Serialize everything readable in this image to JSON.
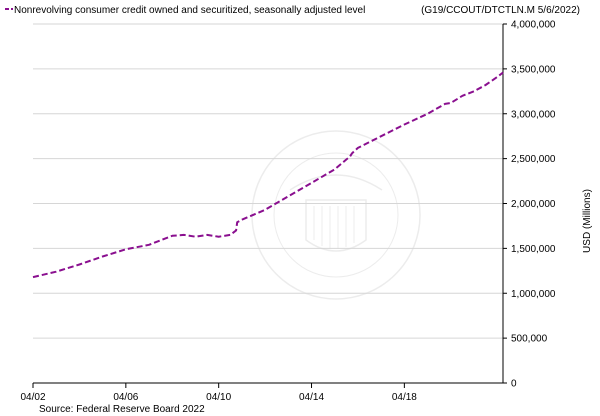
{
  "chart_data": {
    "type": "line",
    "legend": {
      "label": "Nonrevolving consumer credit owned and securitized, seasonally adjusted level",
      "placement": "top-left"
    },
    "series_code": "(G19/CCOUT/DTCTLN.M 5/6/2022)",
    "ylabel": "USD (Millions)",
    "source": "Source: Federal Reserve Board 2022",
    "ylim": [
      0,
      4000000
    ],
    "xlim": [
      2002.0,
      2022.25
    ],
    "grid": "horizontal",
    "y_axis_side": "right",
    "line_color": "#8a0f8f",
    "line_style": "dashed",
    "x_ticks": [
      {
        "value": 2002,
        "label": "04/02"
      },
      {
        "value": 2006,
        "label": "04/06"
      },
      {
        "value": 2010,
        "label": "04/10"
      },
      {
        "value": 2014,
        "label": "04/14"
      },
      {
        "value": 2018,
        "label": "04/18"
      }
    ],
    "y_ticks": [
      {
        "value": 0,
        "label": "0"
      },
      {
        "value": 500000,
        "label": "500,000"
      },
      {
        "value": 1000000,
        "label": "1,000,000"
      },
      {
        "value": 1500000,
        "label": "1,500,000"
      },
      {
        "value": 2000000,
        "label": "2,000,000"
      },
      {
        "value": 2500000,
        "label": "2,500,000"
      },
      {
        "value": 3000000,
        "label": "3,000,000"
      },
      {
        "value": 3500000,
        "label": "3,500,000"
      },
      {
        "value": 4000000,
        "label": "4,000,000"
      }
    ],
    "series": [
      {
        "x": [
          2002.0,
          2003.0,
          2004.0,
          2005.0,
          2006.0,
          2007.0,
          2008.0,
          2008.5,
          2009.0,
          2009.5,
          2010.0,
          2010.5,
          2010.75,
          2010.8,
          2011.0,
          2012.0,
          2013.0,
          2014.0,
          2015.0,
          2015.5,
          2015.65,
          2015.75,
          2016.0,
          2017.0,
          2018.0,
          2019.0,
          2019.75,
          2020.0,
          2020.5,
          2021.0,
          2021.5,
          2022.0,
          2022.25
        ],
        "y": [
          1180000,
          1240000,
          1320000,
          1410000,
          1490000,
          1540000,
          1640000,
          1650000,
          1630000,
          1650000,
          1630000,
          1650000,
          1700000,
          1790000,
          1820000,
          1930000,
          2080000,
          2230000,
          2380000,
          2490000,
          2520000,
          2560000,
          2620000,
          2750000,
          2880000,
          3000000,
          3110000,
          3120000,
          3200000,
          3250000,
          3320000,
          3410000,
          3460000
        ]
      }
    ]
  }
}
